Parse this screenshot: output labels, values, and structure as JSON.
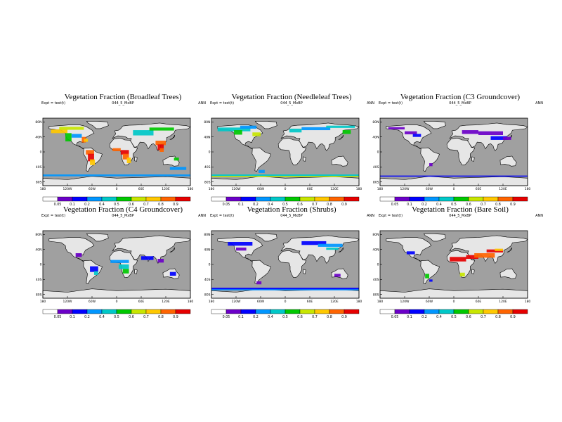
{
  "colorbar_levels": [
    "0.05",
    "0.1",
    "0.2",
    "0.4",
    "0.5",
    "0.6",
    "0.7",
    "0.8",
    "0.9"
  ],
  "colorbar_colors": [
    "#ffffff",
    "#6b00c8",
    "#0000ff",
    "#0096ff",
    "#00c8c8",
    "#00c800",
    "#c8e600",
    "#ffc800",
    "#ff6400",
    "#e60000"
  ],
  "land_color": "#e6e6e6",
  "ocean_color": "#a0a0a0",
  "lat_ticks": [
    "80N",
    "40N",
    "0",
    "40S",
    "80S"
  ],
  "lon_ticks": [
    "180",
    "120W",
    "60W",
    "0",
    "60E",
    "120E",
    "180"
  ],
  "chart_data": [
    {
      "type": "heatmap",
      "title": "Vegetation Fraction (Broadleaf Trees)",
      "subtitle": "044_5_MxBP",
      "expt": "Expt = test(t)",
      "season": "ANN"
    },
    {
      "type": "heatmap",
      "title": "Vegetation Fraction (Needleleaf Trees)",
      "subtitle": "044_5_MxBP",
      "expt": "Expt = test(t)",
      "season": "ANN"
    },
    {
      "type": "heatmap",
      "title": "Vegetation Fraction (C3 Groundcover)",
      "subtitle": "044_5_MxBP",
      "expt": "Expt = test(t)",
      "season": "ANN"
    },
    {
      "type": "heatmap",
      "title": "Vegetation Fraction (C4 Groundcover)",
      "subtitle": "044_5_MxBP",
      "expt": "Expt = test(t)",
      "season": "ANN"
    },
    {
      "type": "heatmap",
      "title": "Vegetation Fraction (Shrubs)",
      "subtitle": "044_5_MxBP",
      "expt": "Expt = test(t)",
      "season": "ANN"
    },
    {
      "type": "heatmap",
      "title": "Vegetation Fraction (Bare Soil)",
      "subtitle": "044_5_MxBP",
      "expt": "Expt = test(t)",
      "season": "ANN"
    }
  ]
}
